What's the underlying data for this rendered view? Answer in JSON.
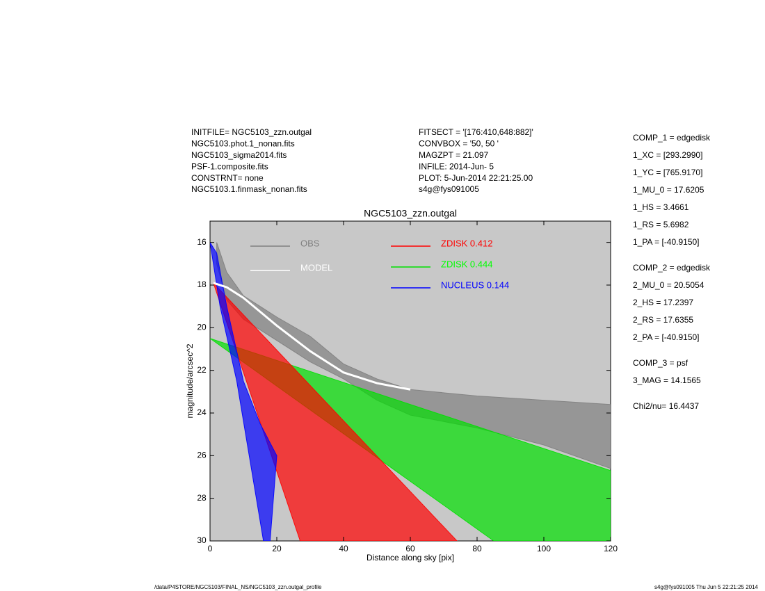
{
  "header_left": [
    "INITFILE= NGC5103_zzn.outgal",
    "NGC5103.phot.1_nonan.fits",
    "NGC5103_sigma2014.fits",
    "PSF-1.composite.fits",
    "CONSTRNT= none",
    "NGC5103.1.finmask_nonan.fits"
  ],
  "header_middle": [
    "FITSECT = '[176:410,648:882]'",
    "CONVBOX = '50, 50  '",
    "MAGZPT  =              21.097",
    "INFILE: 2014-Jun- 5",
    "PLOT:  5-Jun-2014 22:21:25.00",
    "s4g@fys091005"
  ],
  "fit_parameters": [
    [
      "COMP_1  = edgedisk",
      "1_XC    = [293.2990]",
      "1_YC    = [765.9170]",
      "1_MU_0  = 17.6205",
      "1_HS    = 3.4661",
      "1_RS    = 5.6982",
      "1_PA    = [-40.9150]"
    ],
    [
      "COMP_2  = edgedisk",
      "2_MU_0  = 20.5054",
      "2_HS    = 17.2397",
      "2_RS    = 17.6355",
      "2_PA    = [-40.9150]"
    ],
    [
      "COMP_3  = psf",
      "3_MAG   = 14.1565"
    ],
    [
      "Chi2/nu=      16.4437"
    ]
  ],
  "footer_left": "/data/P4STORE/NGC5103/FINAL_NS/NGC5103_zzn.outgal_profile",
  "footer_right": "s4g@fys091005  Thu Jun  5 22:21:25 2014",
  "chart_data": {
    "type": "profile",
    "title": "NGC5103_zzn.outgal",
    "x_label": "Distance along sky [pix]",
    "y_label": "magnitude/arcsec^2",
    "xlim": [
      0,
      120
    ],
    "xticks": [
      0,
      20,
      40,
      60,
      80,
      100,
      120
    ],
    "ylim": [
      30,
      15
    ],
    "yticks": [
      16,
      18,
      20,
      22,
      24,
      26,
      28,
      30
    ],
    "background": "#c8c8c8",
    "series": [
      {
        "name": "OBS",
        "color": "#808080",
        "kind": "cloud",
        "x": [
          2,
          5,
          10,
          20,
          30,
          40,
          50,
          60,
          80,
          100,
          120,
          120,
          100,
          80,
          60,
          50,
          40,
          30,
          20,
          10,
          5,
          2
        ],
        "values": [
          16,
          17.4,
          18.5,
          19.5,
          20.4,
          21.7,
          22.4,
          22.9,
          23.2,
          23.4,
          23.6,
          26.6,
          25.5,
          24.7,
          24.1,
          23.4,
          22.4,
          21.6,
          20.6,
          19.6,
          18.7,
          17
        ]
      },
      {
        "name": "MODEL",
        "color": "#ffffff",
        "kind": "line",
        "x": [
          1,
          5,
          10,
          20,
          30,
          40,
          50,
          60
        ],
        "values": [
          17.9,
          18.1,
          18.6,
          19.9,
          21.1,
          22.1,
          22.6,
          22.9
        ]
      },
      {
        "name": "ZDISK  0.412",
        "color": "#ff0000",
        "kind": "cloud",
        "x": [
          1,
          27,
          74
        ],
        "values": [
          17.9,
          30,
          30
        ]
      },
      {
        "name": "ZDISK  0.444",
        "color": "#00e000",
        "kind": "cloud",
        "x": [
          0,
          120,
          120,
          85
        ],
        "values": [
          20.5,
          26.7,
          30,
          30
        ]
      },
      {
        "name": "NUCLEUS  0.144",
        "color": "#0000ff",
        "kind": "cloud",
        "x": [
          0,
          3,
          8,
          16,
          18,
          20,
          15,
          10,
          5,
          2
        ],
        "values": [
          16,
          19,
          22.5,
          30,
          30,
          26,
          24.5,
          22.5,
          19,
          16.5
        ]
      }
    ]
  }
}
